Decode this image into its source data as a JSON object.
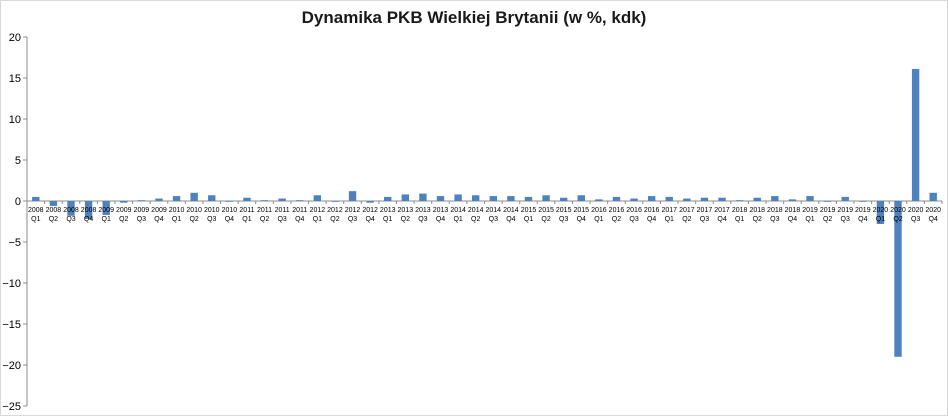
{
  "chart_data": {
    "type": "bar",
    "title": "Dynamika PKB Wielkiej Brytanii (w %, kdk)",
    "xlabel": "",
    "ylabel": "",
    "ylim": [
      -25,
      20
    ],
    "yticks": [
      20,
      15,
      10,
      5,
      0,
      -5,
      -10,
      -15,
      -20,
      -25
    ],
    "grid": false,
    "legend": "none",
    "bar_color": "#4f81bd",
    "categories": [
      [
        "2008",
        "Q1"
      ],
      [
        "2008",
        "Q2"
      ],
      [
        "2008",
        "Q3"
      ],
      [
        "2008",
        "Q4"
      ],
      [
        "2009",
        "Q1"
      ],
      [
        "2009",
        "Q2"
      ],
      [
        "2009",
        "Q3"
      ],
      [
        "2009",
        "Q4"
      ],
      [
        "2010",
        "Q1"
      ],
      [
        "2010",
        "Q2"
      ],
      [
        "2010",
        "Q3"
      ],
      [
        "2010",
        "Q4"
      ],
      [
        "2011",
        "Q1"
      ],
      [
        "2011",
        "Q2"
      ],
      [
        "2011",
        "Q3"
      ],
      [
        "2011",
        "Q4"
      ],
      [
        "2012",
        "Q1"
      ],
      [
        "2012",
        "Q2"
      ],
      [
        "2012",
        "Q3"
      ],
      [
        "2012",
        "Q4"
      ],
      [
        "2013",
        "Q1"
      ],
      [
        "2013",
        "Q2"
      ],
      [
        "2013",
        "Q3"
      ],
      [
        "2013",
        "Q4"
      ],
      [
        "2014",
        "Q1"
      ],
      [
        "2014",
        "Q2"
      ],
      [
        "2014",
        "Q3"
      ],
      [
        "2014",
        "Q4"
      ],
      [
        "2015",
        "Q1"
      ],
      [
        "2015",
        "Q2"
      ],
      [
        "2015",
        "Q3"
      ],
      [
        "2015",
        "Q4"
      ],
      [
        "2016",
        "Q1"
      ],
      [
        "2016",
        "Q2"
      ],
      [
        "2016",
        "Q3"
      ],
      [
        "2016",
        "Q4"
      ],
      [
        "2017",
        "Q1"
      ],
      [
        "2017",
        "Q2"
      ],
      [
        "2017",
        "Q3"
      ],
      [
        "2017",
        "Q4"
      ],
      [
        "2018",
        "Q1"
      ],
      [
        "2018",
        "Q2"
      ],
      [
        "2018",
        "Q3"
      ],
      [
        "2018",
        "Q4"
      ],
      [
        "2019",
        "Q1"
      ],
      [
        "2019",
        "Q2"
      ],
      [
        "2019",
        "Q3"
      ],
      [
        "2019",
        "Q4"
      ],
      [
        "2020",
        "Q1"
      ],
      [
        "2020",
        "Q2"
      ],
      [
        "2020",
        "Q3"
      ],
      [
        "2020",
        "Q4"
      ]
    ],
    "values": [
      0.5,
      -0.6,
      -1.8,
      -2.2,
      -1.7,
      -0.2,
      0.1,
      0.3,
      0.6,
      1.0,
      0.7,
      0.0,
      0.4,
      0.1,
      0.3,
      0.1,
      0.7,
      -0.1,
      1.2,
      -0.2,
      0.5,
      0.8,
      0.9,
      0.6,
      0.8,
      0.7,
      0.6,
      0.6,
      0.5,
      0.7,
      0.4,
      0.7,
      0.2,
      0.5,
      0.3,
      0.6,
      0.5,
      0.3,
      0.4,
      0.4,
      0.1,
      0.4,
      0.6,
      0.2,
      0.6,
      -0.1,
      0.5,
      0.0,
      -2.8,
      -19.0,
      16.1,
      1.0
    ]
  }
}
